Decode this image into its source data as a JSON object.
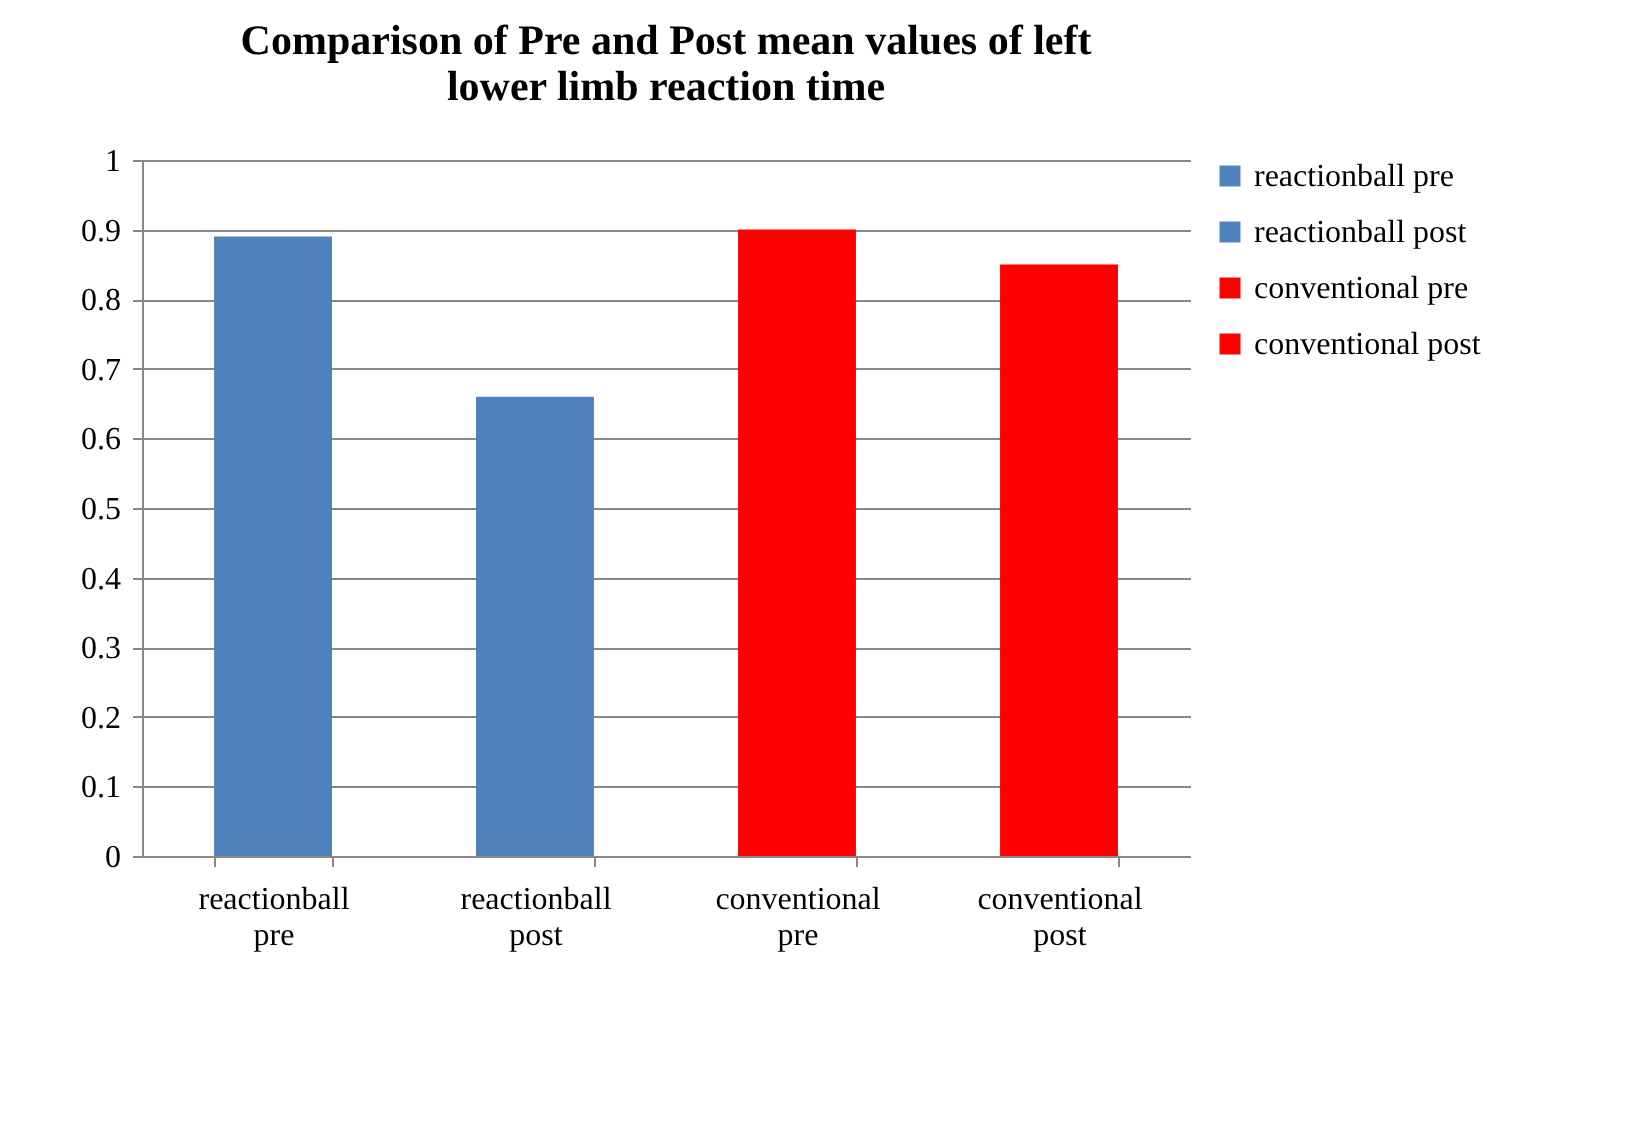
{
  "chart_data": {
    "type": "bar",
    "title": "Comparison of Pre and Post mean values of left lower limb reaction time",
    "categories": [
      "reactionball pre",
      "reactionball post",
      "conventional pre",
      "conventional post"
    ],
    "series": [
      {
        "name": "reactionball pre",
        "color": "#4f81bd",
        "values": [
          0.89,
          null,
          null,
          null
        ]
      },
      {
        "name": "reactionball post",
        "color": "#4f81bd",
        "values": [
          null,
          0.66,
          null,
          null
        ]
      },
      {
        "name": "conventional pre",
        "color": "#ff0000",
        "values": [
          null,
          null,
          0.9,
          null
        ]
      },
      {
        "name": "conventional post",
        "color": "#ff0000",
        "values": [
          null,
          null,
          null,
          0.85
        ]
      }
    ],
    "ylim": [
      0,
      1
    ],
    "yticks": [
      0,
      0.1,
      0.2,
      0.3,
      0.4,
      0.5,
      0.6,
      0.7,
      0.8,
      0.9,
      1
    ],
    "grid": "y",
    "legend": "right"
  }
}
